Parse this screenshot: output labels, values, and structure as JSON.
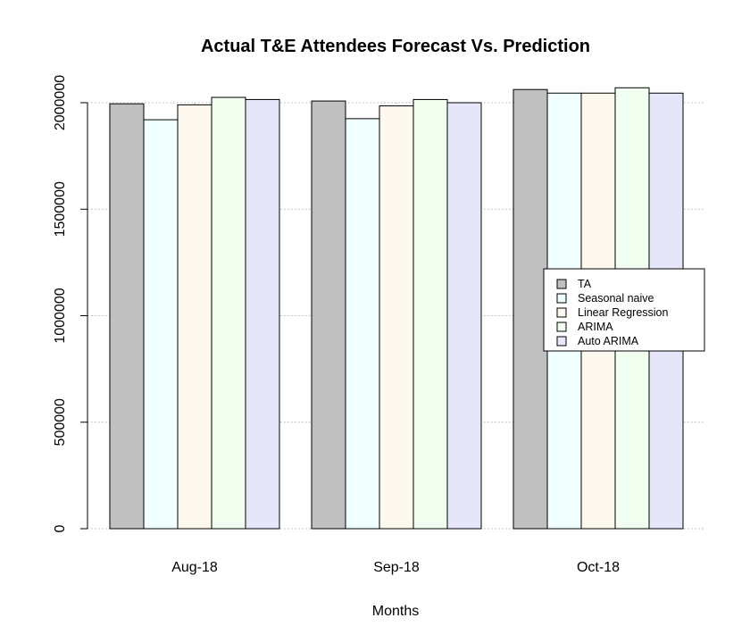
{
  "chart_data": {
    "type": "bar",
    "title": "Actual T&E Attendees Forecast Vs. Prediction",
    "xlabel": "Months",
    "ylabel": "",
    "categories": [
      "Aug-18",
      "Sep-18",
      "Oct-18"
    ],
    "yticks": [
      0,
      500000,
      1000000,
      1500000,
      2000000
    ],
    "ylim": [
      0,
      2150000
    ],
    "grid": true,
    "legend_position": "right",
    "series": [
      {
        "name": "TA",
        "color": "#c0c0c0",
        "values": [
          1995000,
          2008000,
          2062000
        ]
      },
      {
        "name": "Seasonal naive",
        "color": "#f0ffff",
        "values": [
          1920000,
          1925000,
          2045000
        ]
      },
      {
        "name": "Linear Regression",
        "color": "#fdf8ee",
        "values": [
          1990000,
          1985000,
          2045000
        ]
      },
      {
        "name": "ARIMA",
        "color": "#f0fff0",
        "values": [
          2025000,
          2015000,
          2070000
        ]
      },
      {
        "name": "Auto ARIMA",
        "color": "#e6e6fa",
        "values": [
          2015000,
          2000000,
          2045000
        ]
      }
    ]
  }
}
